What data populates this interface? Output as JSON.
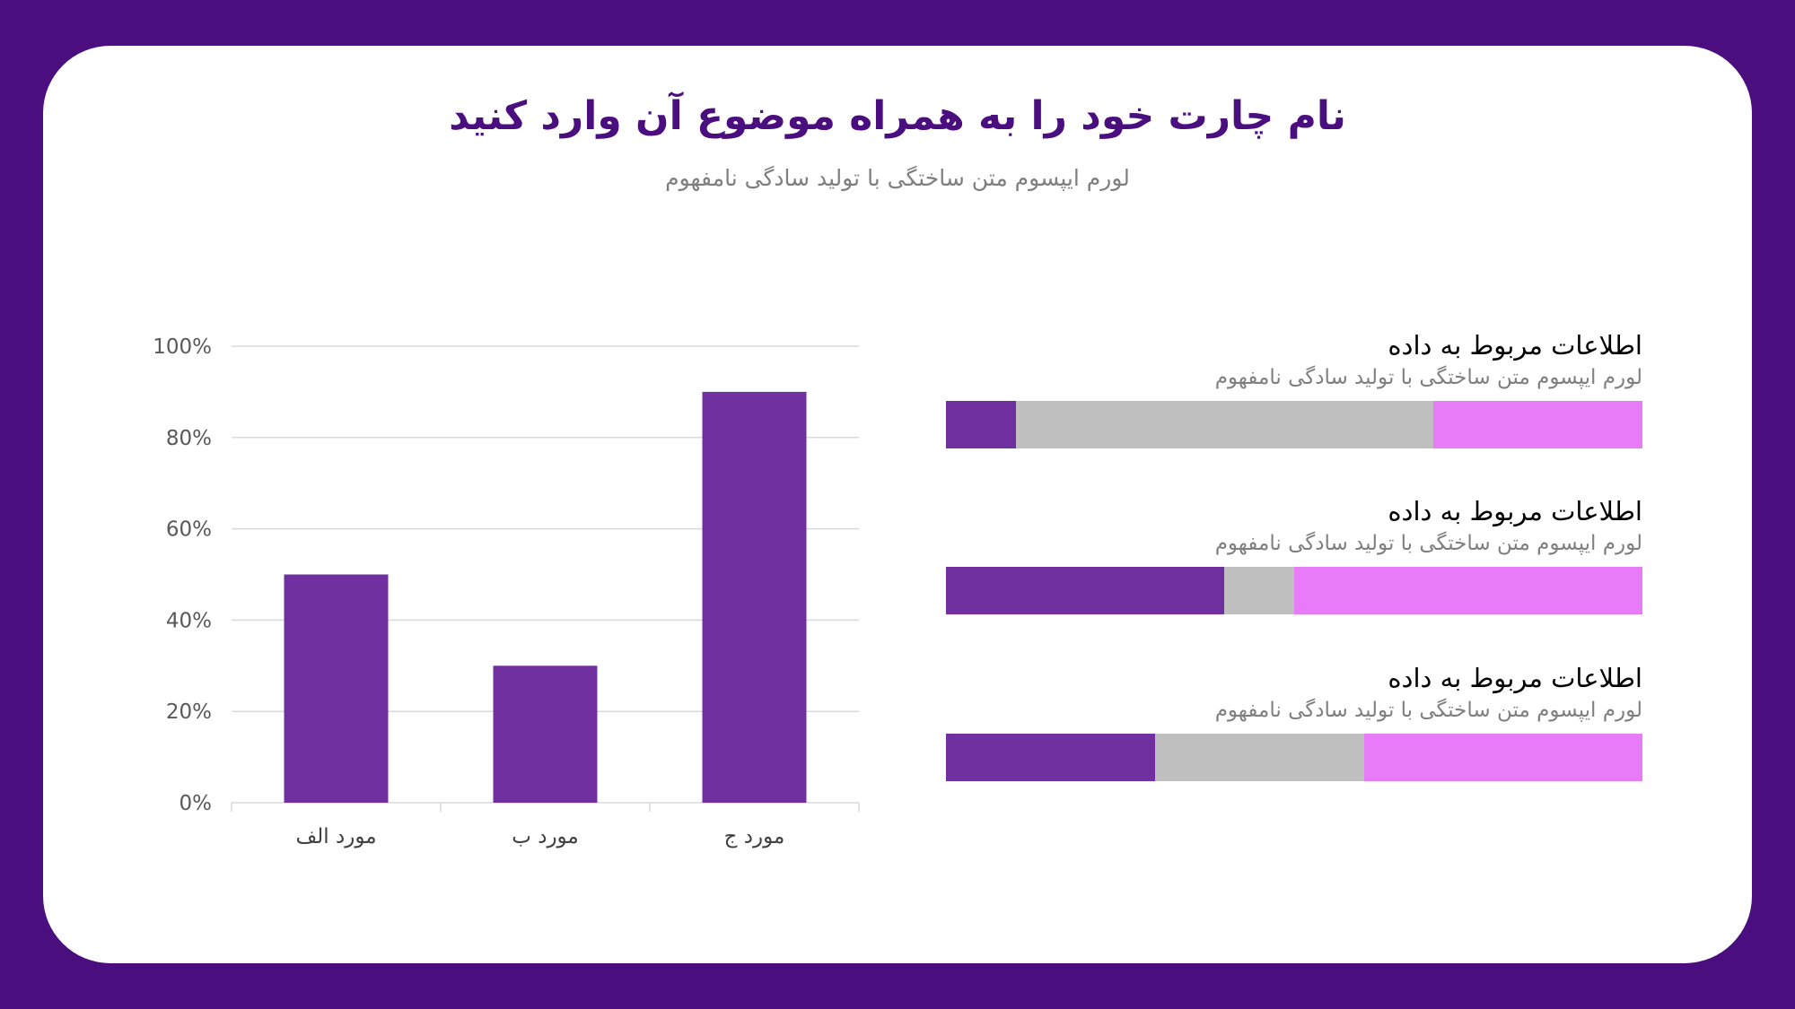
{
  "header": {
    "title": "نام چارت خود را به همراه موضوع آن وارد کنید",
    "subtitle": "لورم ایپسوم متن ساختگی با تولید سادگی نامفهوم"
  },
  "colors": {
    "background": "#4a0e7e",
    "bar": "#7030a0",
    "gray": "#bfbfbf",
    "pink": "#e87cf8",
    "grid": "#d9d9d9"
  },
  "chart_data": [
    {
      "type": "bar",
      "title": "",
      "xlabel": "",
      "ylabel": "",
      "categories": [
        "مورد الف",
        "مورد ب",
        "مورد ج"
      ],
      "values": [
        50,
        30,
        90
      ],
      "ylim": [
        0,
        100
      ],
      "yticks": [
        "0%",
        "20%",
        "40%",
        "60%",
        "80%",
        "100%"
      ],
      "grid": true
    },
    {
      "type": "bar",
      "orientation": "horizontal-stacked",
      "rows": [
        {
          "title": "اطلاعات مربوط به داده",
          "subtitle": "لورم ایپسوم متن ساختگی با تولید سادگی نامفهوم",
          "values": [
            10,
            60,
            30
          ]
        },
        {
          "title": "اطلاعات مربوط به داده",
          "subtitle": "لورم ایپسوم متن ساختگی با تولید سادگی نامفهوم",
          "values": [
            40,
            10,
            50
          ]
        },
        {
          "title": "اطلاعات مربوط به داده",
          "subtitle": "لورم ایپسوم متن ساختگی با تولید سادگی نامفهوم",
          "values": [
            30,
            30,
            40
          ]
        }
      ]
    }
  ]
}
